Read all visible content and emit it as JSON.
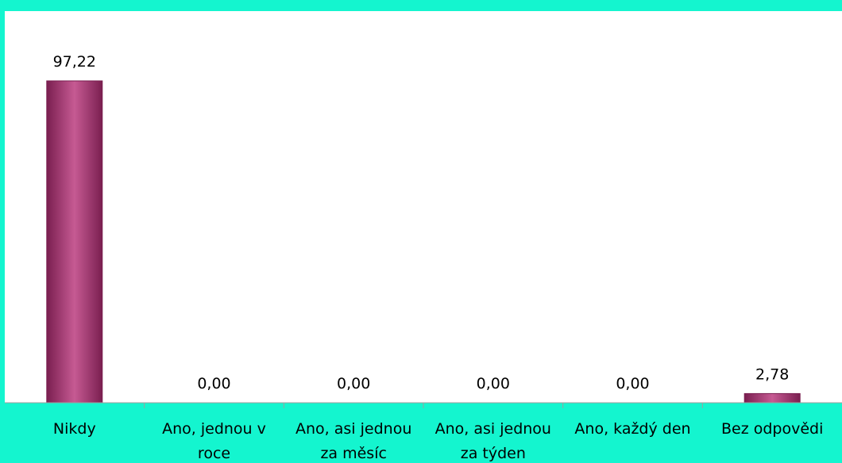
{
  "colors": {
    "background": "#14f5cf",
    "plot_area": "#ffffff",
    "bar": "#a3336e",
    "bar_dark": "#7a1f50",
    "bar_light": "#c65a93",
    "axis_line": "#9e9e9e"
  },
  "chart_data": {
    "type": "bar",
    "categories": [
      [
        "Nikdy"
      ],
      [
        "Ano, jednou v",
        "roce"
      ],
      [
        "Ano, asi jednou",
        "za měsíc"
      ],
      [
        "Ano, asi jednou",
        "za týden"
      ],
      [
        "Ano, každý den"
      ],
      [
        "Bez odpovědi"
      ]
    ],
    "values": [
      97.22,
      0.0,
      0.0,
      0.0,
      0.0,
      2.78
    ],
    "data_labels": [
      "97,22",
      "0,00",
      "0,00",
      "0,00",
      "0,00",
      "2,78"
    ],
    "ylim": [
      0,
      100
    ],
    "grid": false,
    "legend": "none"
  }
}
